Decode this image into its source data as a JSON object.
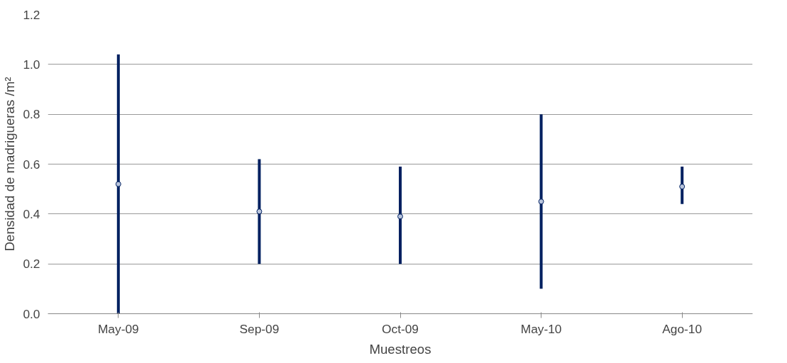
{
  "chart_data": {
    "type": "scatter",
    "xlabel": "Muestreos",
    "ylabel": "Densidad de madrigueras /m²",
    "categories": [
      "May-09",
      "Sep-09",
      "Oct-09",
      "May-10",
      "Ago-10"
    ],
    "series": [
      {
        "color": "#002060",
        "values": [
          0.52,
          0.41,
          0.39,
          0.45,
          0.51
        ],
        "errors": [
          [
            0.0,
            1.04
          ],
          [
            0.2,
            0.62
          ],
          [
            0.2,
            0.59
          ],
          [
            0.1,
            0.8
          ],
          [
            0.44,
            0.59
          ]
        ]
      }
    ],
    "ylim": [
      0,
      1.2
    ],
    "yticks": [
      {
        "value": 0,
        "label": "0.0"
      },
      0.2,
      0.4,
      0.6,
      0.8,
      {
        "value": 1,
        "label": "1.0"
      },
      1.2
    ],
    "grid": "y",
    "marker": "circle"
  }
}
